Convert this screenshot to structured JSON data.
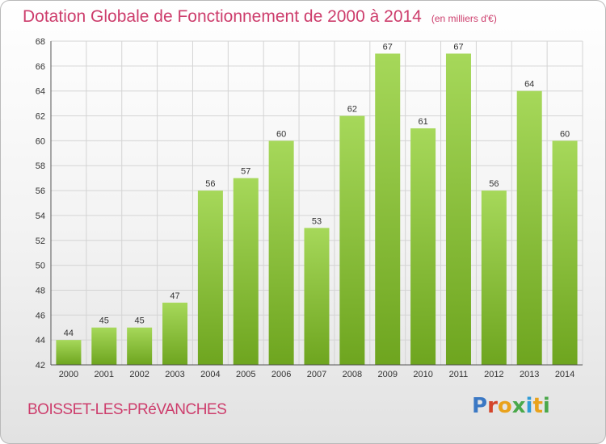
{
  "header": {
    "title": "Dotation Globale de Fonctionnement de 2000 à 2014",
    "unit": "(en milliers d'€)"
  },
  "footer": {
    "commune": "BOISSET-LES-PRéVANCHES",
    "logo_letters": [
      "P",
      "r",
      "o",
      "x",
      "i",
      "t",
      "i"
    ],
    "logo_colors": [
      "#3b78c4",
      "#d4452a",
      "#e9a21c",
      "#4aa84a",
      "#2f9bd6",
      "#e9a21c",
      "#4aa84a"
    ]
  },
  "colors": {
    "title": "#cd3d6c",
    "bar_light": "#a6d85a",
    "bar_dark": "#6ea51f",
    "grid": "#d4d4d4"
  },
  "chart_data": {
    "type": "bar",
    "title": "Dotation Globale de Fonctionnement de 2000 à 2014",
    "xlabel": "",
    "ylabel": "",
    "categories": [
      "2000",
      "2001",
      "2002",
      "2003",
      "2004",
      "2005",
      "2006",
      "2007",
      "2008",
      "2009",
      "2010",
      "2011",
      "2012",
      "2013",
      "2014"
    ],
    "values": [
      44,
      45,
      45,
      47,
      56,
      57,
      60,
      53,
      62,
      67,
      61,
      67,
      56,
      64,
      60
    ],
    "ylim": [
      42,
      68
    ],
    "yticks": [
      42,
      44,
      46,
      48,
      50,
      52,
      54,
      56,
      58,
      60,
      62,
      64,
      66,
      68
    ],
    "grid": true,
    "data_labels": true
  }
}
